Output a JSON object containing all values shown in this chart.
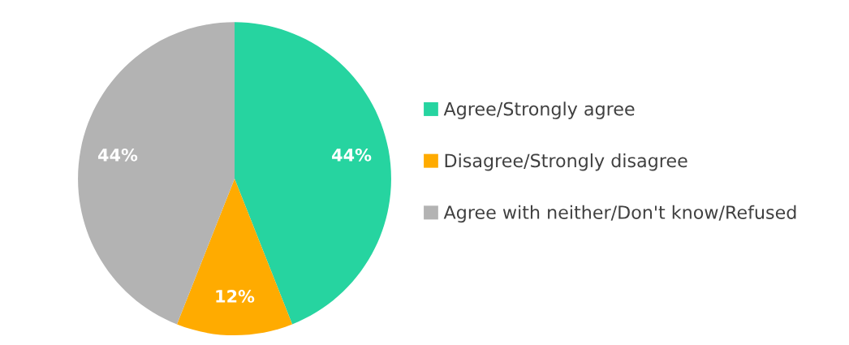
{
  "chart_data": {
    "type": "pie",
    "categories": [
      "Agree/Strongly agree",
      "Disagree/Strongly disagree",
      "Agree with neither/Don't know/Refused"
    ],
    "values": [
      44,
      12,
      44
    ],
    "colors": [
      "#26d4a0",
      "#ffab00",
      "#b3b3b3"
    ],
    "value_labels": [
      "44%",
      "12%",
      "44%"
    ],
    "legend": "right"
  }
}
